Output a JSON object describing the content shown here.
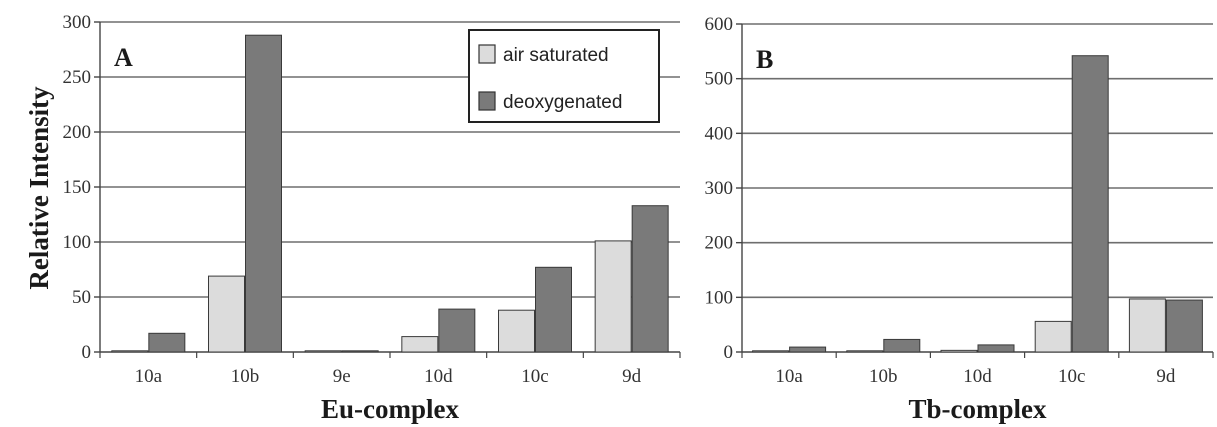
{
  "figure": {
    "ylabel": "Relative Intensity",
    "legend": [
      "air saturated",
      "deoxygenated"
    ]
  },
  "colors": {
    "air_saturated": "#dcdcdc",
    "deoxygenated": "#7a7a7a",
    "axis": "#444444",
    "grid": "#6e6e6e"
  },
  "chart_data": [
    {
      "type": "bar",
      "panel_label": "A",
      "xlabel": "Eu-complex",
      "ylabel": "Relative Intensity",
      "categories": [
        "10a",
        "10b",
        "9e",
        "10d",
        "10c",
        "9d"
      ],
      "ylim": [
        0,
        300
      ],
      "yticks": [
        0,
        50,
        100,
        150,
        200,
        250,
        300
      ],
      "grid": true,
      "legend_position": "top-right",
      "series": [
        {
          "name": "air saturated",
          "values": [
            1,
            69,
            0,
            14,
            38,
            101
          ]
        },
        {
          "name": "deoxygenated",
          "values": [
            17,
            288,
            0,
            39,
            77,
            133
          ]
        }
      ]
    },
    {
      "type": "bar",
      "panel_label": "B",
      "xlabel": "Tb-complex",
      "ylabel": "",
      "categories": [
        "10a",
        "10b",
        "10d",
        "10c",
        "9d"
      ],
      "ylim": [
        0,
        600
      ],
      "yticks": [
        0,
        100,
        200,
        300,
        400,
        500,
        600
      ],
      "grid": true,
      "series": [
        {
          "name": "air saturated",
          "values": [
            0,
            0,
            3,
            56,
            97
          ]
        },
        {
          "name": "deoxygenated",
          "values": [
            9,
            23,
            13,
            542,
            95
          ]
        }
      ]
    }
  ]
}
